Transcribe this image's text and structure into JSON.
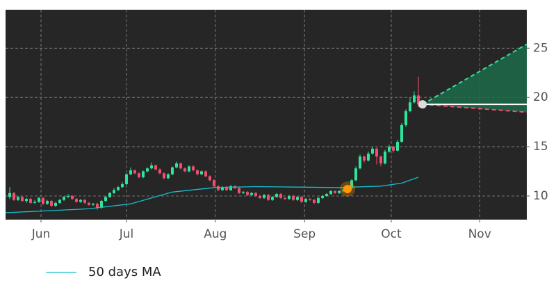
{
  "chart_data": {
    "type": "candlestick",
    "x": [
      1,
      2,
      3,
      4,
      5,
      6,
      7,
      8,
      9,
      10,
      11,
      12,
      13,
      14,
      15,
      16,
      17,
      18,
      19,
      20,
      21,
      22,
      23,
      24,
      25,
      26,
      27,
      28,
      29,
      30,
      31,
      32,
      33,
      34,
      35,
      36,
      37,
      38,
      39,
      40,
      41,
      42,
      43,
      44,
      45,
      46,
      47,
      48,
      49,
      50,
      51,
      52,
      53,
      54,
      55,
      56,
      57,
      58,
      59,
      60,
      61,
      62,
      63,
      64,
      65,
      66,
      67,
      68,
      69,
      70,
      71,
      72,
      73,
      74,
      75,
      76,
      77,
      78,
      79,
      80,
      81,
      82,
      83,
      84,
      85,
      86,
      87,
      88,
      89,
      90,
      91,
      92,
      93,
      94,
      95,
      96,
      97,
      98,
      99
    ],
    "open": [
      9.9,
      10.3,
      9.6,
      9.9,
      9.5,
      9.7,
      9.3,
      9.4,
      9.8,
      9.2,
      9.5,
      9.0,
      9.3,
      9.6,
      9.9,
      10.0,
      9.7,
      9.4,
      9.6,
      9.3,
      9.1,
      9.2,
      8.8,
      9.5,
      9.9,
      10.3,
      10.6,
      10.9,
      11.2,
      12.2,
      12.6,
      12.3,
      11.9,
      12.5,
      12.8,
      13.1,
      12.7,
      12.3,
      11.8,
      12.2,
      12.9,
      13.3,
      12.8,
      12.5,
      13.0,
      12.6,
      12.2,
      12.5,
      12.0,
      11.6,
      11.0,
      10.6,
      10.9,
      10.6,
      11.0,
      10.8,
      10.3,
      10.4,
      10.1,
      10.3,
      10.0,
      9.8,
      10.1,
      9.6,
      9.9,
      10.2,
      9.8,
      9.7,
      10.0,
      9.6,
      9.9,
      9.4,
      9.7,
      9.6,
      9.3,
      9.8,
      10.0,
      10.2,
      10.5,
      10.3,
      10.5,
      10.6,
      10.8,
      11.6,
      12.8,
      14.0,
      13.6,
      14.3,
      14.8,
      14.0,
      13.3,
      14.5,
      15.0,
      14.6,
      15.5,
      17.2,
      18.6,
      19.5,
      20.2
    ],
    "high": [
      10.9,
      10.4,
      10.0,
      10.0,
      9.8,
      9.8,
      9.6,
      9.9,
      9.9,
      9.6,
      9.6,
      9.4,
      9.7,
      10.0,
      10.2,
      10.1,
      9.8,
      9.7,
      9.7,
      9.4,
      9.3,
      9.3,
      9.6,
      10.0,
      10.4,
      10.8,
      11.0,
      11.4,
      12.3,
      12.9,
      12.7,
      12.4,
      12.6,
      12.9,
      13.4,
      13.2,
      12.8,
      12.4,
      12.3,
      13.0,
      13.5,
      13.4,
      12.9,
      13.1,
      13.1,
      12.7,
      12.6,
      12.6,
      12.1,
      11.7,
      11.1,
      11.0,
      11.0,
      11.1,
      11.1,
      10.9,
      10.5,
      10.5,
      10.4,
      10.4,
      10.1,
      10.2,
      10.2,
      10.0,
      10.3,
      10.3,
      9.9,
      10.1,
      10.1,
      10.0,
      10.0,
      9.8,
      9.8,
      9.7,
      9.9,
      10.1,
      10.3,
      10.6,
      10.6,
      10.6,
      10.7,
      10.9,
      11.7,
      13.0,
      14.2,
      14.1,
      14.5,
      15.0,
      14.9,
      14.1,
      14.7,
      15.2,
      15.1,
      15.7,
      17.4,
      18.8,
      20.0,
      20.6,
      22.1
    ],
    "low": [
      9.7,
      9.5,
      9.5,
      9.4,
      9.3,
      9.2,
      9.2,
      9.3,
      9.1,
      9.1,
      8.9,
      8.9,
      9.2,
      9.5,
      9.8,
      9.6,
      9.3,
      9.3,
      9.2,
      9.0,
      9.0,
      8.6,
      8.7,
      9.4,
      9.8,
      10.2,
      10.5,
      10.8,
      11.1,
      12.1,
      12.2,
      11.8,
      11.8,
      12.4,
      12.7,
      12.6,
      12.2,
      11.7,
      11.7,
      12.1,
      12.8,
      12.7,
      12.4,
      12.4,
      12.5,
      12.1,
      12.1,
      11.9,
      11.5,
      10.9,
      10.5,
      10.5,
      10.5,
      10.5,
      10.7,
      10.2,
      10.2,
      10.0,
      10.0,
      9.9,
      9.7,
      9.7,
      9.5,
      9.5,
      9.8,
      9.7,
      9.6,
      9.6,
      9.5,
      9.5,
      9.3,
      9.3,
      9.5,
      9.2,
      9.2,
      9.7,
      9.9,
      10.1,
      10.2,
      10.2,
      10.4,
      10.5,
      10.7,
      11.5,
      12.7,
      13.4,
      13.5,
      14.2,
      13.2,
      13.0,
      13.2,
      14.4,
      14.4,
      14.5,
      15.4,
      17.0,
      18.5,
      19.4,
      19.0
    ],
    "close": [
      10.3,
      9.6,
      9.9,
      9.5,
      9.7,
      9.3,
      9.4,
      9.8,
      9.2,
      9.5,
      9.0,
      9.3,
      9.6,
      9.9,
      10.0,
      9.7,
      9.4,
      9.6,
      9.3,
      9.1,
      9.2,
      8.8,
      9.5,
      9.9,
      10.3,
      10.6,
      10.9,
      11.2,
      12.2,
      12.6,
      12.3,
      11.9,
      12.5,
      12.8,
      13.1,
      12.7,
      12.3,
      11.8,
      12.2,
      12.9,
      13.3,
      12.8,
      12.5,
      13.0,
      12.6,
      12.2,
      12.5,
      12.0,
      11.6,
      11.0,
      10.6,
      10.9,
      10.6,
      11.0,
      10.8,
      10.3,
      10.4,
      10.1,
      10.3,
      10.0,
      9.8,
      10.1,
      9.6,
      9.9,
      10.2,
      9.8,
      9.7,
      10.0,
      9.6,
      9.9,
      9.4,
      9.7,
      9.6,
      9.3,
      9.8,
      10.0,
      10.2,
      10.5,
      10.3,
      10.5,
      10.6,
      10.8,
      11.6,
      12.8,
      14.0,
      13.6,
      14.3,
      14.8,
      14.0,
      13.3,
      14.5,
      15.0,
      14.6,
      15.5,
      17.2,
      18.6,
      19.5,
      20.2,
      19.3
    ],
    "up_color": "#2ee59d",
    "down_color": "#f0506e",
    "ma": {
      "name": "50 days MA",
      "color": "#17becf",
      "x": [
        0,
        10,
        20,
        30,
        40,
        50,
        60,
        70,
        80,
        90,
        95,
        99
      ],
      "values": [
        8.3,
        8.5,
        8.7,
        9.2,
        10.4,
        10.85,
        10.95,
        10.9,
        10.85,
        11.0,
        11.3,
        11.9
      ]
    },
    "projection": {
      "x": [
        100,
        125
      ],
      "upper": [
        19.3,
        25.4
      ],
      "lower": [
        19.3,
        18.5
      ],
      "mid": [
        19.3,
        19.3
      ],
      "upper_color": "#2ee59d",
      "lower_color": "#f0506e",
      "fill": "#1d6b4a"
    },
    "markers": [
      {
        "x": 82,
        "value": 10.7,
        "color": "#ff9800"
      },
      {
        "x": 100,
        "value": 19.3,
        "color": "#dddddd"
      }
    ],
    "xlim": [
      0,
      125
    ],
    "xticks": [
      {
        "value": 8.5,
        "label": "Jun"
      },
      {
        "value": 29,
        "label": "Jul"
      },
      {
        "value": 50.3,
        "label": "Aug"
      },
      {
        "value": 71.7,
        "label": "Sep"
      },
      {
        "value": 92.5,
        "label": "Oct"
      },
      {
        "value": 113.7,
        "label": "Nov"
      }
    ],
    "ylim": [
      7.6,
      28.9
    ],
    "yticks": [
      10,
      15,
      20,
      25
    ],
    "grid": true
  }
}
